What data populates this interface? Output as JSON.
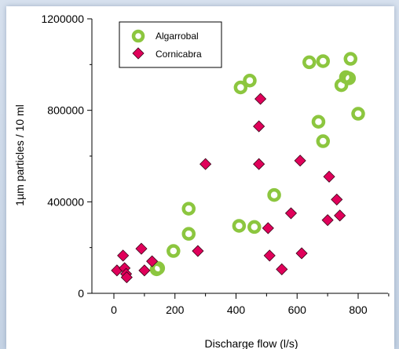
{
  "chart_data": {
    "type": "scatter",
    "title": "",
    "xlabel": "Discharge flow (l/s)",
    "ylabel": "1µm particles / 10 ml",
    "xlim": [
      0,
      900
    ],
    "ylim": [
      0,
      1200000
    ],
    "x_ticks": [
      0,
      200,
      400,
      600,
      800
    ],
    "x_tick_labels": [
      "0",
      "200",
      "400",
      "600",
      "800"
    ],
    "y_ticks": [
      0,
      400000,
      800000,
      1200000
    ],
    "y_tick_labels": [
      "0",
      "400000",
      "800000",
      "1200000"
    ],
    "grid": false,
    "legend_position": "top-left",
    "series": [
      {
        "name": "Algarrobal",
        "marker": "ring",
        "color": "#8cc63f",
        "points": [
          [
            140,
            105000
          ],
          [
            145,
            110000
          ],
          [
            195,
            185000
          ],
          [
            245,
            260000
          ],
          [
            245,
            370000
          ],
          [
            410,
            295000
          ],
          [
            415,
            900000
          ],
          [
            445,
            930000
          ],
          [
            460,
            290000
          ],
          [
            525,
            430000
          ],
          [
            640,
            1010000
          ],
          [
            685,
            1015000
          ],
          [
            670,
            750000
          ],
          [
            685,
            665000
          ],
          [
            745,
            910000
          ],
          [
            760,
            945000
          ],
          [
            770,
            940000
          ],
          [
            775,
            1025000
          ],
          [
            800,
            785000
          ]
        ]
      },
      {
        "name": "Cornicabra",
        "marker": "diamond",
        "color": "#e0005a",
        "points": [
          [
            10,
            100000
          ],
          [
            30,
            165000
          ],
          [
            35,
            110000
          ],
          [
            40,
            85000
          ],
          [
            42,
            70000
          ],
          [
            90,
            195000
          ],
          [
            100,
            100000
          ],
          [
            125,
            140000
          ],
          [
            275,
            185000
          ],
          [
            300,
            565000
          ],
          [
            475,
            565000
          ],
          [
            475,
            730000
          ],
          [
            480,
            850000
          ],
          [
            505,
            285000
          ],
          [
            510,
            165000
          ],
          [
            550,
            105000
          ],
          [
            580,
            350000
          ],
          [
            610,
            580000
          ],
          [
            615,
            175000
          ],
          [
            700,
            320000
          ],
          [
            705,
            510000
          ],
          [
            730,
            410000
          ],
          [
            740,
            340000
          ]
        ]
      }
    ]
  }
}
